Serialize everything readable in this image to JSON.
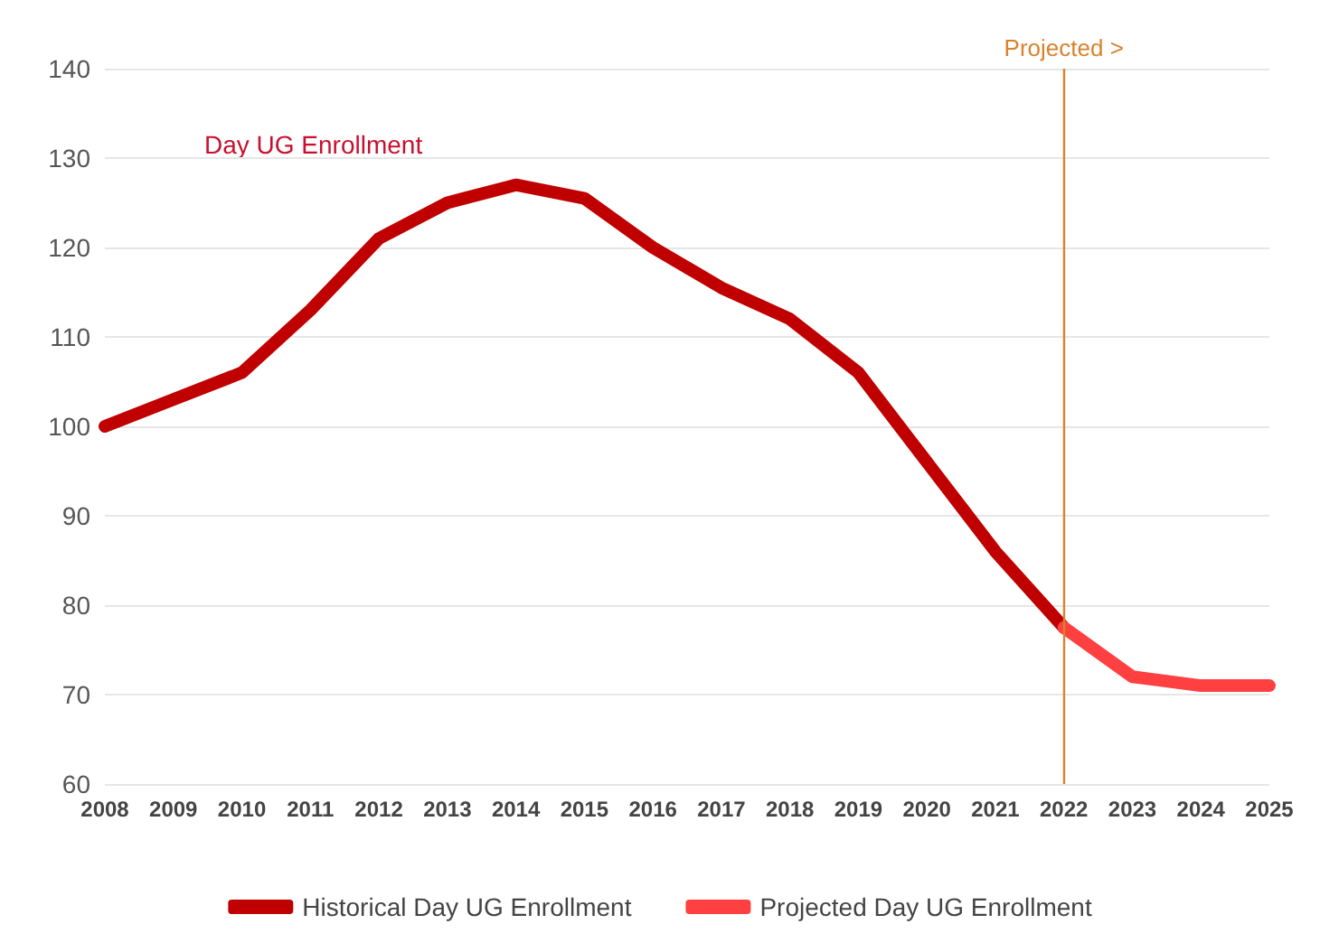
{
  "chart_data": {
    "type": "line",
    "categories": [
      "2008",
      "2009",
      "2010",
      "2011",
      "2012",
      "2013",
      "2014",
      "2015",
      "2016",
      "2017",
      "2018",
      "2019",
      "2020",
      "2021",
      "2022",
      "2023",
      "2024",
      "2025"
    ],
    "series": [
      {
        "name": "Historical Day UG Enrollment",
        "color": "#c00000",
        "values": [
          100,
          103,
          106,
          113,
          121,
          125,
          127,
          125.5,
          120,
          115.5,
          112,
          106,
          96,
          86,
          77.5,
          null,
          null,
          null
        ]
      },
      {
        "name": "Projected Day UG Enrollment",
        "color": "#ff4040",
        "values": [
          null,
          null,
          null,
          null,
          null,
          null,
          null,
          null,
          null,
          null,
          null,
          null,
          null,
          null,
          77.5,
          72,
          71,
          71
        ]
      }
    ],
    "ylim": [
      60,
      140
    ],
    "yticks": [
      60,
      70,
      80,
      90,
      100,
      110,
      120,
      130,
      140
    ],
    "ref_lines": [
      {
        "axis": "x",
        "value": "2022",
        "label": "Projected >",
        "color": "#d9822b"
      }
    ],
    "annotations": [
      "Day UG Enrollment"
    ],
    "grid": "y",
    "legend": "bottom",
    "marker": "none",
    "line_style": "solid"
  }
}
